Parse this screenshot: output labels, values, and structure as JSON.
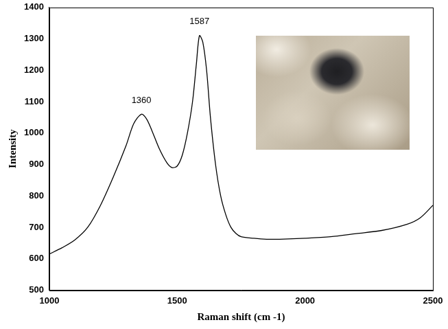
{
  "chart_data": {
    "type": "line",
    "x_label": "Raman shift (cm -1)",
    "y_label": "Intensity",
    "series": [
      {
        "color": "#000000",
        "x": [
          1000,
          1050,
          1100,
          1150,
          1200,
          1250,
          1300,
          1330,
          1360,
          1380,
          1400,
          1430,
          1460,
          1480,
          1500,
          1520,
          1540,
          1560,
          1575,
          1587,
          1600,
          1615,
          1630,
          1650,
          1670,
          1690,
          1710,
          1730,
          1750,
          1800,
          1850,
          1900,
          2000,
          2100,
          2200,
          2300,
          2400,
          2450,
          2500
        ],
        "values": [
          615,
          635,
          660,
          700,
          770,
          860,
          960,
          1030,
          1060,
          1045,
          1010,
          950,
          905,
          890,
          895,
          930,
          1000,
          1100,
          1220,
          1310,
          1290,
          1200,
          1050,
          900,
          800,
          740,
          700,
          680,
          670,
          665,
          662,
          662,
          665,
          670,
          680,
          690,
          710,
          730,
          770
        ]
      }
    ],
    "annotations": [
      {
        "text": "1360",
        "x": 1360,
        "y": 1090
      },
      {
        "text": "1587",
        "x": 1587,
        "y": 1340
      }
    ],
    "xlim": [
      1000,
      2500
    ],
    "xticks": [
      1000,
      1500,
      2000,
      2500
    ],
    "ylim": [
      500,
      1400
    ],
    "yticks": [
      500,
      600,
      700,
      800,
      900,
      1000,
      1100,
      1200,
      1300,
      1400
    ],
    "grid": false
  }
}
